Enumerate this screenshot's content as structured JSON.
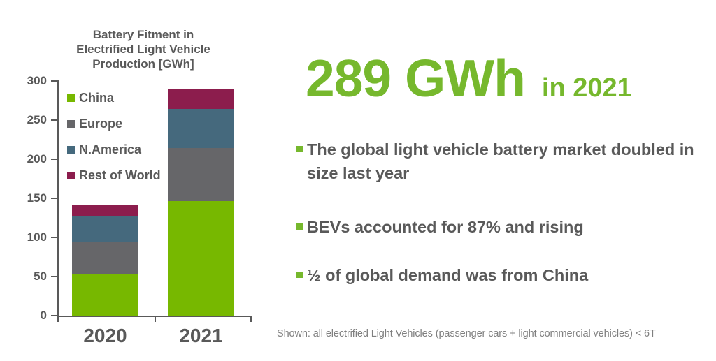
{
  "colors": {
    "accent_green": "#76B82D",
    "bar_china_green": "#77B800",
    "bar_europe_gray": "#666669",
    "bar_namerica_blue": "#45697D",
    "bar_rest_of_world_maroon": "#8C1D4D",
    "body_text_gray": "#595959",
    "footnote_gray": "#7F7F7F"
  },
  "chart": {
    "title_lines": [
      "Battery Fitment in",
      "Electrified Light Vehicle",
      "Production [GWh]"
    ]
  },
  "chart_data": {
    "type": "bar",
    "stacked": true,
    "title": "Battery Fitment in Electrified Light Vehicle Production [GWh]",
    "categories": [
      "2020",
      "2021"
    ],
    "series": [
      {
        "name": "China",
        "color": "#77B800",
        "values": [
          53,
          146
        ]
      },
      {
        "name": "Europe",
        "color": "#666669",
        "values": [
          42,
          68
        ]
      },
      {
        "name": "N.America",
        "color": "#45697D",
        "values": [
          32,
          50
        ]
      },
      {
        "name": "Rest of World",
        "color": "#8C1D4D",
        "values": [
          15,
          25
        ]
      }
    ],
    "totals": [
      142,
      289
    ],
    "xlabel": "",
    "ylabel": "",
    "ylim": [
      0,
      300
    ],
    "yticks": [
      0,
      50,
      100,
      150,
      200,
      250,
      300
    ],
    "grid": false,
    "legend_position": "upper-left-inside"
  },
  "headline": {
    "value": "289 GWh",
    "suffix": "in 2021"
  },
  "bullets": [
    "The global light vehicle battery market doubled in size last year",
    "BEVs accounted for 87% and rising",
    "½ of global demand was from China"
  ],
  "footnote": "Shown: all electrified Light Vehicles (passenger cars + light commercial vehicles) < 6T"
}
